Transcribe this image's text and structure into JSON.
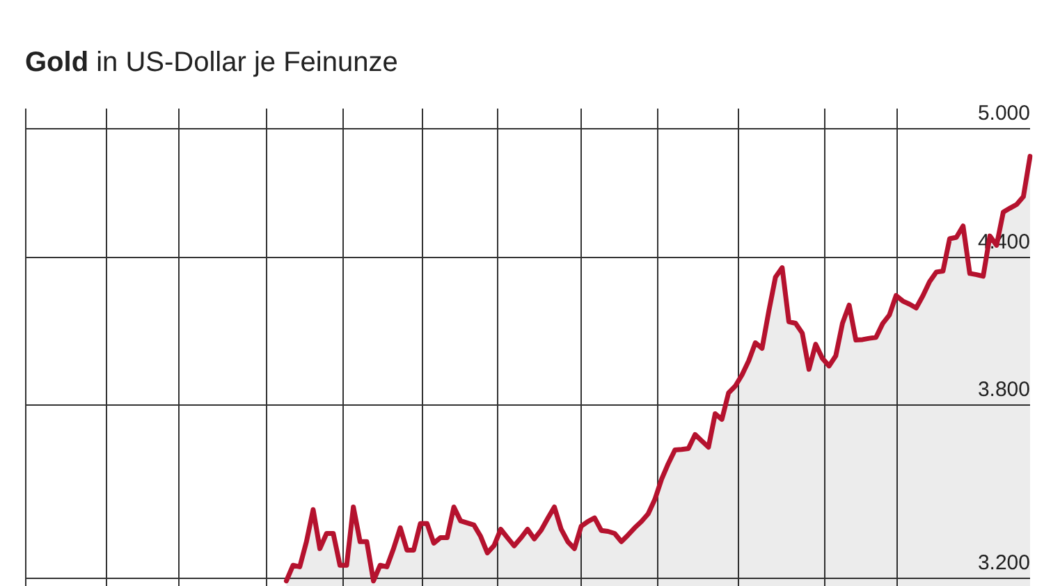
{
  "chart_data": {
    "type": "area",
    "title": "Gold in US-Dollar je Feinunze",
    "categories": [
      null,
      null,
      null,
      null,
      null,
      null,
      null,
      null,
      null,
      null,
      null,
      null,
      null,
      null,
      null,
      null,
      null,
      null,
      null,
      null,
      null,
      null,
      null,
      null,
      null,
      null,
      null,
      null,
      null,
      null,
      null,
      null,
      null,
      null,
      null,
      null,
      null,
      null,
      null,
      null,
      null,
      null,
      null,
      null,
      null,
      null,
      null,
      null,
      null,
      null,
      null,
      null,
      null,
      null,
      null,
      null,
      null,
      null,
      null,
      null,
      null,
      null,
      null,
      null,
      null,
      null,
      null,
      null,
      null,
      null,
      null,
      null,
      null,
      null,
      null,
      null,
      null,
      null,
      null,
      null,
      null,
      null,
      null,
      null,
      null,
      null,
      null,
      null,
      null,
      null,
      null,
      null,
      null,
      null,
      null,
      null,
      null,
      null,
      null,
      null,
      null,
      null,
      null,
      null,
      null,
      null,
      null,
      null,
      null,
      null,
      null,
      null,
      null,
      null,
      null,
      null,
      null,
      null,
      null,
      null,
      null,
      null,
      null,
      null,
      null,
      null,
      null,
      null,
      null,
      null,
      null,
      null,
      null,
      null,
      null,
      null,
      null,
      null,
      null,
      null,
      null,
      null,
      null,
      null,
      null,
      null,
      null,
      null,
      null,
      null,
      null
    ],
    "series": [
      {
        "color": "#b5122e",
        "values": [
          null,
          null,
          null,
          null,
          null,
          null,
          null,
          null,
          null,
          null,
          null,
          null,
          null,
          null,
          null,
          null,
          null,
          null,
          null,
          null,
          null,
          null,
          null,
          null,
          null,
          null,
          null,
          null,
          null,
          null,
          null,
          null,
          null,
          null,
          null,
          null,
          null,
          null,
          null,
          3191,
          3241,
          3236,
          3318,
          3425,
          3295,
          3345,
          3345,
          3241,
          3241,
          3434,
          3318,
          3318,
          3191,
          3241,
          3236,
          3295,
          3364,
          3290,
          3290,
          3378,
          3378,
          3313,
          3331,
          3331,
          3434,
          3387,
          3380,
          3373,
          3335,
          3281,
          3305,
          3359,
          3331,
          3304,
          3330,
          3359,
          3327,
          3355,
          3395,
          3434,
          3360,
          3318,
          3295,
          3369,
          3385,
          3397,
          3355,
          3352,
          3345,
          3318,
          3340,
          3364,
          3385,
          3411,
          3460,
          3530,
          3585,
          3634,
          3636,
          3639,
          3690,
          3667,
          3644,
          3767,
          3746,
          3846,
          3872,
          3915,
          3970,
          4042,
          4020,
          4170,
          4314,
          4355,
          4127,
          4121,
          4081,
          3937,
          4036,
          3980,
          3950,
          3990,
          4121,
          4196,
          4053,
          4055,
          4060,
          4064,
          4120,
          4155,
          4236,
          4213,
          4200,
          4184,
          4235,
          4295,
          4336,
          4340,
          4482,
          4488,
          4539,
          4330,
          4325,
          4318,
          4494,
          4453,
          4602,
          4620,
          4637,
          4673,
          4864
        ]
      }
    ],
    "ylim": [
      3175,
      5100
    ],
    "yticks": [
      {
        "value": 3200,
        "label": "3.200"
      },
      {
        "value": 3800,
        "label": "3.800"
      },
      {
        "value": 4400,
        "label": "4.400"
      },
      {
        "value": 5000,
        "label": "5.000"
      }
    ],
    "log": true,
    "grid": "y",
    "legend": false,
    "tick_labels": "y"
  }
}
